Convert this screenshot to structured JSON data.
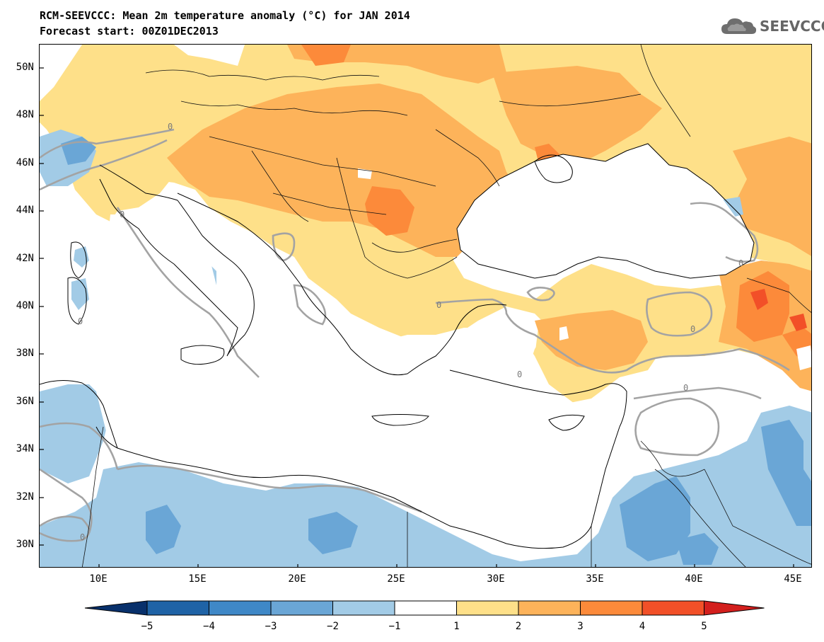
{
  "title": {
    "line1": "RCM-SEEVCCC: Mean 2m temperature anomaly (°C) for JAN 2014",
    "line2": "Forecast start: 00Z01DEC2013"
  },
  "logo": {
    "text": "SEEVCCC",
    "icon": "cloud-icon"
  },
  "map": {
    "lat_labels": [
      "50N",
      "48N",
      "46N",
      "44N",
      "42N",
      "40N",
      "38N",
      "36N",
      "34N",
      "32N",
      "30N"
    ],
    "lon_labels": [
      "10E",
      "15E",
      "20E",
      "25E",
      "30E",
      "35E",
      "40E",
      "45E"
    ],
    "contour_label": "0"
  },
  "colorbar": {
    "labels": [
      "-5",
      "-4",
      "-3",
      "-2",
      "-1",
      "1",
      "2",
      "3",
      "4",
      "5"
    ],
    "colors": [
      "#08306b",
      "#1f63a6",
      "#3f88c7",
      "#6aa6d6",
      "#a2cbe6",
      "#ffffff",
      "#fee089",
      "#fdb35a",
      "#fc8a3a",
      "#f25028",
      "#d31f1d"
    ]
  }
}
